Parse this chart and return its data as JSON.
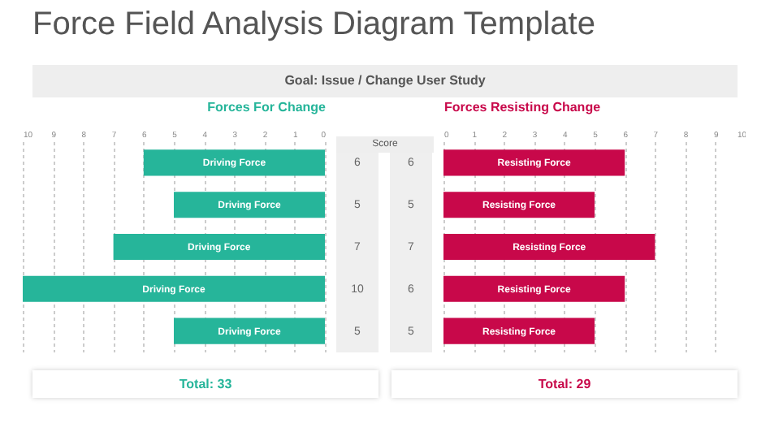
{
  "chart_data": [
    {
      "type": "bar",
      "orientation": "horizontal",
      "title": "Force Field Analysis Diagram Template",
      "subtitle": "Goal: Issue / Change User Study",
      "xlabel": "Forces For Change",
      "categories": [
        null,
        null,
        null,
        null,
        null
      ],
      "series": [
        {
          "name": "Driving Force",
          "color": "#26b59a",
          "values": [
            6,
            5,
            7,
            10,
            5
          ]
        }
      ],
      "xlim": [
        10,
        0
      ],
      "xticks": [
        10,
        9,
        8,
        7,
        6,
        5,
        4,
        3,
        2,
        1,
        0
      ],
      "grid": "x",
      "tick_labels": "x",
      "data_labels": true,
      "annotations": [
        "Total: 33",
        "Score"
      ]
    },
    {
      "type": "bar",
      "orientation": "horizontal",
      "xlabel": "Forces Resisting Change",
      "categories": [
        null,
        null,
        null,
        null,
        null
      ],
      "series": [
        {
          "name": "Resisting Force",
          "color": "#c8084a",
          "values": [
            6,
            5,
            7,
            6,
            5
          ]
        }
      ],
      "xlim": [
        0,
        10
      ],
      "xticks": [
        0,
        1,
        2,
        3,
        4,
        5,
        6,
        7,
        8,
        9,
        10
      ],
      "grid": "x",
      "tick_labels": "x",
      "data_labels": true,
      "annotations": [
        "Total: 29"
      ]
    }
  ]
}
